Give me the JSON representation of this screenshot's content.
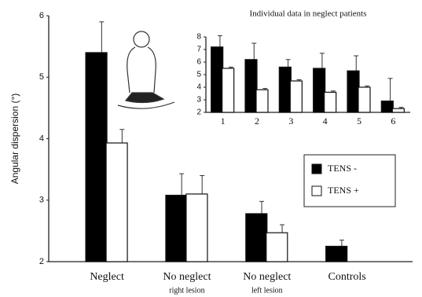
{
  "chart_data": [
    {
      "type": "bar",
      "y_label": "Angular dispersion (°)",
      "categories": [
        "Neglect",
        "No neglect",
        "No neglect",
        "Controls"
      ],
      "category_sublabels": [
        null,
        "right lesion",
        "left lesion",
        null
      ],
      "series": [
        {
          "name": "TENS -",
          "color": "#000000",
          "values": [
            5.4,
            3.08,
            2.78,
            2.25
          ],
          "errors": [
            0.5,
            0.35,
            0.2,
            0.1
          ]
        },
        {
          "name": "TENS +",
          "color": "#ffffff",
          "values": [
            3.93,
            3.1,
            2.47,
            null
          ],
          "errors": [
            0.22,
            0.3,
            0.13,
            null
          ]
        }
      ],
      "ylim": [
        2,
        6
      ],
      "yticks": [
        2,
        3,
        4,
        5,
        6
      ],
      "legend": "right"
    },
    {
      "type": "bar",
      "title": "Individual data in neglect patients",
      "categories": [
        "1",
        "2",
        "3",
        "4",
        "5",
        "6"
      ],
      "series": [
        {
          "name": "TENS -",
          "color": "#000000",
          "values": [
            7.2,
            6.2,
            5.6,
            5.5,
            5.3,
            2.9
          ],
          "errors": [
            0.9,
            1.3,
            0.6,
            1.2,
            1.2,
            1.8
          ]
        },
        {
          "name": "TENS +",
          "color": "#ffffff",
          "values": [
            5.5,
            3.8,
            4.5,
            3.6,
            4.0,
            2.3
          ],
          "errors": [
            0.1,
            0.1,
            0.1,
            0.1,
            0.1,
            0.1
          ]
        }
      ],
      "ylim": [
        2,
        8
      ],
      "yticks": [
        2,
        3,
        4,
        5,
        6,
        7,
        8
      ]
    }
  ]
}
